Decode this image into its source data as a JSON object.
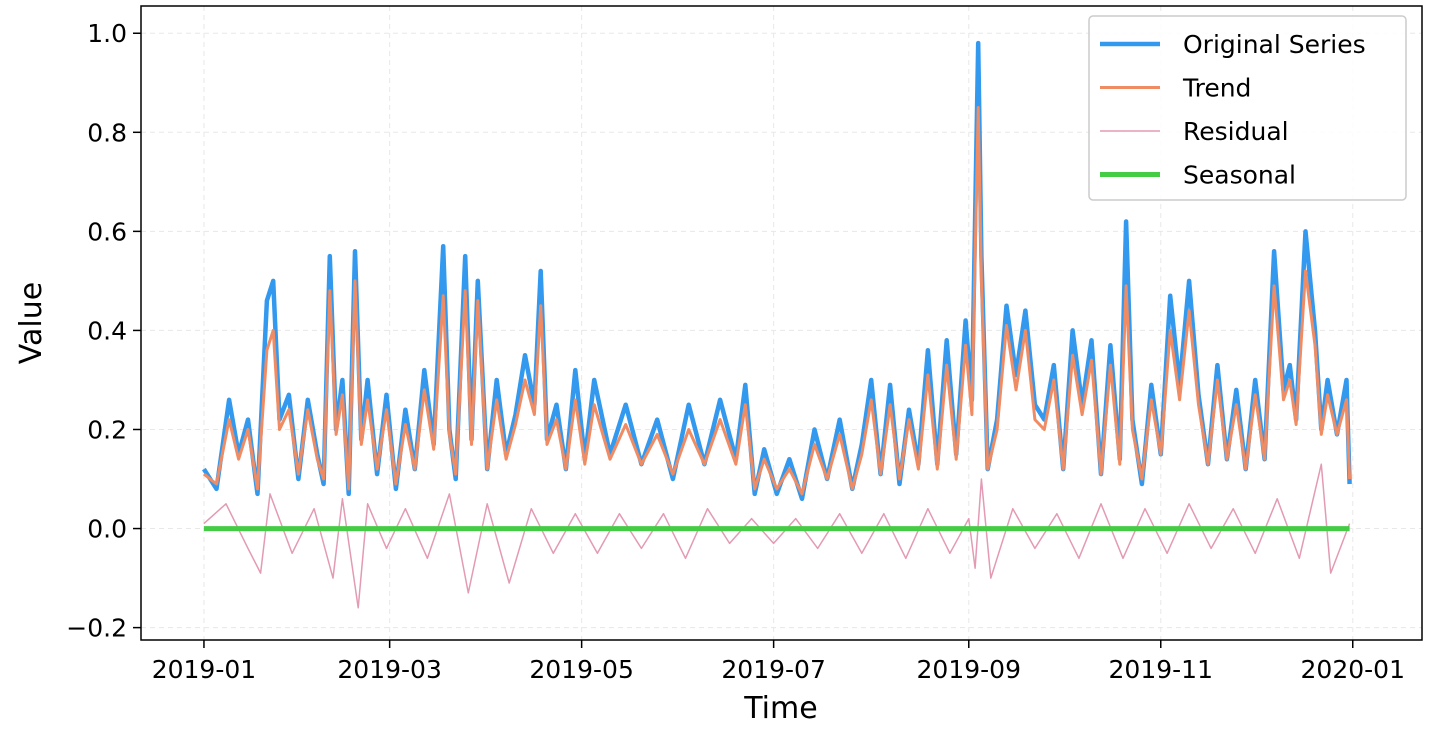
{
  "chart_data": {
    "type": "line",
    "xlabel": "Time",
    "ylabel": "Value",
    "x_range": [
      "2018-12-12",
      "2020-01-23"
    ],
    "ylim": [
      -0.225,
      1.055
    ],
    "x_ticks": [
      "2019-01",
      "2019-03",
      "2019-05",
      "2019-07",
      "2019-09",
      "2019-11",
      "2020-01"
    ],
    "y_ticks": [
      -0.2,
      0.0,
      0.2,
      0.4,
      0.6,
      0.8,
      1.0
    ],
    "y_tick_labels": [
      "−0.2",
      "0.0",
      "0.2",
      "0.4",
      "0.6",
      "0.8",
      "1.0"
    ],
    "grid": true,
    "legend_position": "top-right",
    "series": [
      {
        "name": "Original Series",
        "color": "#3399ee",
        "x": [
          "2019-01-01",
          "2019-01-05",
          "2019-01-09",
          "2019-01-12",
          "2019-01-15",
          "2019-01-18",
          "2019-01-21",
          "2019-01-23",
          "2019-01-25",
          "2019-01-28",
          "2019-01-31",
          "2019-02-03",
          "2019-02-06",
          "2019-02-08",
          "2019-02-10",
          "2019-02-12",
          "2019-02-14",
          "2019-02-16",
          "2019-02-18",
          "2019-02-20",
          "2019-02-22",
          "2019-02-25",
          "2019-02-28",
          "2019-03-03",
          "2019-03-06",
          "2019-03-09",
          "2019-03-12",
          "2019-03-15",
          "2019-03-18",
          "2019-03-20",
          "2019-03-22",
          "2019-03-25",
          "2019-03-27",
          "2019-03-29",
          "2019-04-01",
          "2019-04-04",
          "2019-04-07",
          "2019-04-10",
          "2019-04-13",
          "2019-04-16",
          "2019-04-18",
          "2019-04-20",
          "2019-04-23",
          "2019-04-26",
          "2019-04-29",
          "2019-05-02",
          "2019-05-05",
          "2019-05-10",
          "2019-05-15",
          "2019-05-20",
          "2019-05-25",
          "2019-05-30",
          "2019-06-04",
          "2019-06-09",
          "2019-06-14",
          "2019-06-19",
          "2019-06-22",
          "2019-06-25",
          "2019-06-28",
          "2019-07-02",
          "2019-07-06",
          "2019-07-10",
          "2019-07-14",
          "2019-07-18",
          "2019-07-22",
          "2019-07-26",
          "2019-07-29",
          "2019-08-01",
          "2019-08-04",
          "2019-08-07",
          "2019-08-10",
          "2019-08-13",
          "2019-08-16",
          "2019-08-19",
          "2019-08-22",
          "2019-08-25",
          "2019-08-28",
          "2019-08-31",
          "2019-09-02",
          "2019-09-04",
          "2019-09-05",
          "2019-09-07",
          "2019-09-10",
          "2019-09-13",
          "2019-09-16",
          "2019-09-19",
          "2019-09-22",
          "2019-09-25",
          "2019-09-28",
          "2019-10-01",
          "2019-10-04",
          "2019-10-07",
          "2019-10-10",
          "2019-10-13",
          "2019-10-16",
          "2019-10-19",
          "2019-10-21",
          "2019-10-23",
          "2019-10-26",
          "2019-10-29",
          "2019-11-01",
          "2019-11-04",
          "2019-11-07",
          "2019-11-10",
          "2019-11-13",
          "2019-11-16",
          "2019-11-19",
          "2019-11-22",
          "2019-11-25",
          "2019-11-28",
          "2019-12-01",
          "2019-12-04",
          "2019-12-07",
          "2019-12-10",
          "2019-12-12",
          "2019-12-14",
          "2019-12-17",
          "2019-12-20",
          "2019-12-22",
          "2019-12-24",
          "2019-12-27",
          "2019-12-30",
          "2019-12-31"
        ],
        "y": [
          0.12,
          0.08,
          0.26,
          0.15,
          0.22,
          0.07,
          0.46,
          0.5,
          0.22,
          0.27,
          0.1,
          0.26,
          0.15,
          0.09,
          0.55,
          0.2,
          0.3,
          0.07,
          0.56,
          0.18,
          0.3,
          0.11,
          0.27,
          0.08,
          0.24,
          0.12,
          0.32,
          0.17,
          0.57,
          0.2,
          0.1,
          0.55,
          0.18,
          0.5,
          0.12,
          0.3,
          0.15,
          0.23,
          0.35,
          0.25,
          0.52,
          0.18,
          0.25,
          0.12,
          0.32,
          0.14,
          0.3,
          0.15,
          0.25,
          0.13,
          0.22,
          0.1,
          0.25,
          0.13,
          0.26,
          0.14,
          0.29,
          0.07,
          0.16,
          0.07,
          0.14,
          0.06,
          0.2,
          0.1,
          0.22,
          0.08,
          0.17,
          0.3,
          0.11,
          0.29,
          0.09,
          0.24,
          0.13,
          0.36,
          0.13,
          0.38,
          0.15,
          0.42,
          0.26,
          0.98,
          0.55,
          0.12,
          0.22,
          0.45,
          0.31,
          0.44,
          0.25,
          0.22,
          0.33,
          0.12,
          0.4,
          0.25,
          0.38,
          0.11,
          0.37,
          0.14,
          0.62,
          0.22,
          0.09,
          0.29,
          0.15,
          0.47,
          0.29,
          0.5,
          0.27,
          0.13,
          0.33,
          0.14,
          0.28,
          0.12,
          0.3,
          0.14,
          0.56,
          0.28,
          0.33,
          0.22,
          0.6,
          0.4,
          0.2,
          0.3,
          0.19,
          0.3,
          0.09
        ]
      },
      {
        "name": "Trend",
        "color": "#f08c64",
        "x": [
          "2019-01-01",
          "2019-01-05",
          "2019-01-09",
          "2019-01-12",
          "2019-01-15",
          "2019-01-18",
          "2019-01-21",
          "2019-01-23",
          "2019-01-25",
          "2019-01-28",
          "2019-01-31",
          "2019-02-03",
          "2019-02-06",
          "2019-02-08",
          "2019-02-10",
          "2019-02-12",
          "2019-02-14",
          "2019-02-16",
          "2019-02-18",
          "2019-02-20",
          "2019-02-22",
          "2019-02-25",
          "2019-02-28",
          "2019-03-03",
          "2019-03-06",
          "2019-03-09",
          "2019-03-12",
          "2019-03-15",
          "2019-03-18",
          "2019-03-20",
          "2019-03-22",
          "2019-03-25",
          "2019-03-27",
          "2019-03-29",
          "2019-04-01",
          "2019-04-04",
          "2019-04-07",
          "2019-04-10",
          "2019-04-13",
          "2019-04-16",
          "2019-04-18",
          "2019-04-20",
          "2019-04-23",
          "2019-04-26",
          "2019-04-29",
          "2019-05-02",
          "2019-05-05",
          "2019-05-10",
          "2019-05-15",
          "2019-05-20",
          "2019-05-25",
          "2019-05-30",
          "2019-06-04",
          "2019-06-09",
          "2019-06-14",
          "2019-06-19",
          "2019-06-22",
          "2019-06-25",
          "2019-06-28",
          "2019-07-02",
          "2019-07-06",
          "2019-07-10",
          "2019-07-14",
          "2019-07-18",
          "2019-07-22",
          "2019-07-26",
          "2019-07-29",
          "2019-08-01",
          "2019-08-04",
          "2019-08-07",
          "2019-08-10",
          "2019-08-13",
          "2019-08-16",
          "2019-08-19",
          "2019-08-22",
          "2019-08-25",
          "2019-08-28",
          "2019-08-31",
          "2019-09-02",
          "2019-09-04",
          "2019-09-05",
          "2019-09-07",
          "2019-09-10",
          "2019-09-13",
          "2019-09-16",
          "2019-09-19",
          "2019-09-22",
          "2019-09-25",
          "2019-09-28",
          "2019-10-01",
          "2019-10-04",
          "2019-10-07",
          "2019-10-10",
          "2019-10-13",
          "2019-10-16",
          "2019-10-19",
          "2019-10-21",
          "2019-10-23",
          "2019-10-26",
          "2019-10-29",
          "2019-11-01",
          "2019-11-04",
          "2019-11-07",
          "2019-11-10",
          "2019-11-13",
          "2019-11-16",
          "2019-11-19",
          "2019-11-22",
          "2019-11-25",
          "2019-11-28",
          "2019-12-01",
          "2019-12-04",
          "2019-12-07",
          "2019-12-10",
          "2019-12-12",
          "2019-12-14",
          "2019-12-17",
          "2019-12-20",
          "2019-12-22",
          "2019-12-24",
          "2019-12-27",
          "2019-12-30",
          "2019-12-31"
        ],
        "y": [
          0.11,
          0.09,
          0.22,
          0.14,
          0.2,
          0.08,
          0.36,
          0.4,
          0.2,
          0.24,
          0.11,
          0.24,
          0.14,
          0.1,
          0.48,
          0.19,
          0.27,
          0.08,
          0.5,
          0.17,
          0.26,
          0.12,
          0.24,
          0.09,
          0.21,
          0.12,
          0.28,
          0.16,
          0.47,
          0.19,
          0.11,
          0.48,
          0.17,
          0.46,
          0.12,
          0.26,
          0.14,
          0.21,
          0.3,
          0.23,
          0.45,
          0.17,
          0.22,
          0.12,
          0.26,
          0.13,
          0.25,
          0.14,
          0.21,
          0.13,
          0.19,
          0.11,
          0.2,
          0.13,
          0.22,
          0.13,
          0.25,
          0.08,
          0.14,
          0.08,
          0.12,
          0.07,
          0.17,
          0.1,
          0.19,
          0.08,
          0.15,
          0.26,
          0.11,
          0.25,
          0.1,
          0.22,
          0.12,
          0.31,
          0.12,
          0.33,
          0.14,
          0.37,
          0.23,
          0.85,
          0.5,
          0.12,
          0.2,
          0.41,
          0.28,
          0.4,
          0.22,
          0.2,
          0.3,
          0.12,
          0.35,
          0.23,
          0.34,
          0.11,
          0.33,
          0.13,
          0.49,
          0.2,
          0.1,
          0.26,
          0.15,
          0.4,
          0.26,
          0.44,
          0.25,
          0.13,
          0.3,
          0.14,
          0.25,
          0.12,
          0.27,
          0.14,
          0.49,
          0.26,
          0.3,
          0.21,
          0.52,
          0.37,
          0.19,
          0.27,
          0.19,
          0.26,
          0.1
        ]
      },
      {
        "name": "Residual",
        "color": "#e39ab4",
        "x": [
          "2019-01-01",
          "2019-01-08",
          "2019-01-15",
          "2019-01-19",
          "2019-01-22",
          "2019-01-29",
          "2019-02-05",
          "2019-02-11",
          "2019-02-14",
          "2019-02-19",
          "2019-02-22",
          "2019-02-28",
          "2019-03-06",
          "2019-03-13",
          "2019-03-20",
          "2019-03-26",
          "2019-04-01",
          "2019-04-08",
          "2019-04-15",
          "2019-04-22",
          "2019-04-29",
          "2019-05-06",
          "2019-05-13",
          "2019-05-20",
          "2019-05-27",
          "2019-06-03",
          "2019-06-10",
          "2019-06-17",
          "2019-06-24",
          "2019-07-01",
          "2019-07-08",
          "2019-07-15",
          "2019-07-22",
          "2019-07-29",
          "2019-08-05",
          "2019-08-12",
          "2019-08-19",
          "2019-08-26",
          "2019-09-01",
          "2019-09-03",
          "2019-09-05",
          "2019-09-08",
          "2019-09-15",
          "2019-09-22",
          "2019-09-29",
          "2019-10-06",
          "2019-10-13",
          "2019-10-20",
          "2019-10-27",
          "2019-11-03",
          "2019-11-10",
          "2019-11-17",
          "2019-11-24",
          "2019-12-01",
          "2019-12-08",
          "2019-12-15",
          "2019-12-22",
          "2019-12-25",
          "2019-12-31"
        ],
        "y": [
          0.01,
          0.05,
          -0.04,
          -0.09,
          0.07,
          -0.05,
          0.04,
          -0.1,
          0.06,
          -0.16,
          0.05,
          -0.04,
          0.04,
          -0.06,
          0.07,
          -0.13,
          0.05,
          -0.11,
          0.04,
          -0.05,
          0.03,
          -0.05,
          0.03,
          -0.04,
          0.03,
          -0.06,
          0.04,
          -0.03,
          0.02,
          -0.03,
          0.02,
          -0.04,
          0.03,
          -0.05,
          0.03,
          -0.06,
          0.04,
          -0.05,
          0.02,
          -0.08,
          0.1,
          -0.1,
          0.04,
          -0.04,
          0.03,
          -0.06,
          0.05,
          -0.06,
          0.04,
          -0.05,
          0.05,
          -0.04,
          0.04,
          -0.05,
          0.06,
          -0.06,
          0.13,
          -0.09,
          0.01
        ]
      },
      {
        "name": "Seasonal",
        "color": "#44cc44",
        "x": [
          "2019-01-01",
          "2019-12-31"
        ],
        "y": [
          0.0,
          0.0
        ]
      }
    ]
  }
}
